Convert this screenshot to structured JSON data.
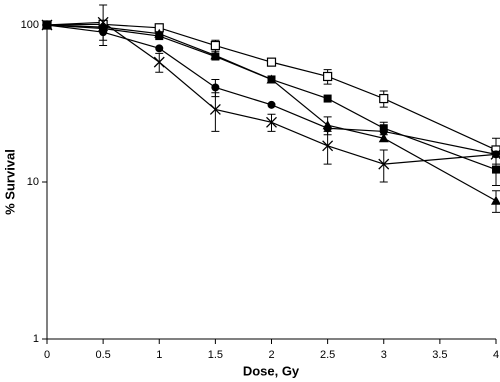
{
  "chart_data": {
    "type": "line",
    "x_label": "Dose, Gy",
    "y_label": "% Survival",
    "x": [
      0,
      0.5,
      1,
      1.5,
      2,
      2.5,
      3,
      4
    ],
    "xlim": [
      0,
      4
    ],
    "xticks": [
      0,
      0.5,
      1,
      1.5,
      2,
      2.5,
      3,
      3.5,
      4
    ],
    "ylim": [
      1,
      100
    ],
    "yticks": [
      1,
      10,
      100
    ],
    "y_scale": "log",
    "grid": false,
    "series": [
      {
        "color": "#000000",
        "marker": "open-square",
        "values": [
          100,
          101,
          96,
          74,
          58,
          47,
          34,
          16
        ],
        "errors": [
          null,
          null,
          null,
          6,
          null,
          5,
          4,
          3
        ]
      },
      {
        "color": "#000000",
        "marker": "filled-square",
        "values": [
          100,
          95,
          85,
          63,
          45,
          34,
          22,
          12
        ],
        "errors": [
          null,
          null,
          null,
          null,
          null,
          null,
          2,
          2.5
        ]
      },
      {
        "color": "#000000",
        "marker": "filled-triangle",
        "values": [
          100,
          97,
          88,
          64,
          45,
          23,
          19,
          7.6
        ],
        "errors": [
          null,
          null,
          null,
          null,
          null,
          3,
          null,
          1.2
        ]
      },
      {
        "color": "#000000",
        "marker": "filled-circle",
        "values": [
          100,
          90,
          71,
          40,
          31,
          22,
          21,
          15
        ],
        "errors": [
          null,
          10,
          null,
          5,
          null,
          null,
          null,
          null
        ]
      },
      {
        "color": "#000000",
        "marker": "x",
        "values": [
          100,
          104,
          58,
          29,
          24,
          17,
          13,
          15
        ],
        "errors": [
          null,
          30,
          8,
          8,
          3,
          4,
          3,
          null
        ]
      }
    ]
  }
}
